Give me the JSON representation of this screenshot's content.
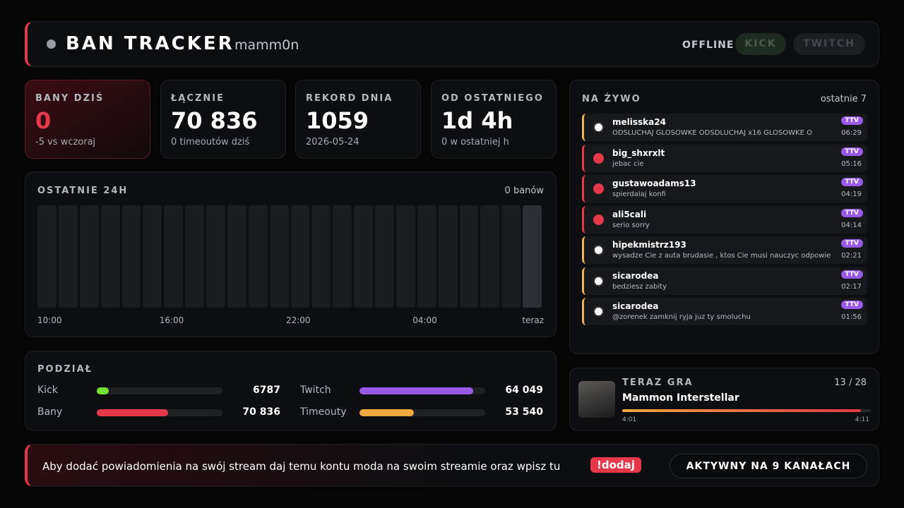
{
  "header": {
    "title": "BAN TRACKER",
    "channel": "mamm0n",
    "status": "OFFLINE",
    "buttons": [
      "KICK",
      "TWITCH"
    ]
  },
  "stats": [
    {
      "label": "BANY DZIŚ",
      "value": "0",
      "sub": "-5 vs wczoraj"
    },
    {
      "label": "ŁĄCZNIE",
      "value": "70 836",
      "sub": "0 timeoutów dziś"
    },
    {
      "label": "REKORD DNIA",
      "value": "1059",
      "sub": "2026-05-24"
    },
    {
      "label": "OD OSTATNIEGO",
      "value": "1d 4h",
      "sub": "0 w ostatniej h"
    }
  ],
  "chart_data": {
    "type": "bar",
    "title": "OSTATNIE 24H",
    "subtitle": "0 banów",
    "categories": [
      "10:00",
      null,
      null,
      null,
      null,
      null,
      "16:00",
      null,
      null,
      null,
      null,
      null,
      "22:00",
      null,
      null,
      null,
      null,
      null,
      "04:00",
      null,
      null,
      null,
      null,
      "teraz"
    ],
    "values": [
      0,
      0,
      0,
      0,
      0,
      0,
      0,
      0,
      0,
      0,
      0,
      0,
      0,
      0,
      0,
      0,
      0,
      0,
      0,
      0,
      0,
      0,
      0,
      0
    ],
    "color": "#e5384a"
  },
  "split": {
    "title": "PODZIAŁ",
    "rows": [
      [
        {
          "name": "Kick",
          "value": 6787,
          "color": "#74e033"
        },
        {
          "name": "Twitch",
          "value": {
            "value": 64049,
            "label": "64 049"
          },
          "color": "#9a5ae8"
        }
      ],
      [
        {
          "name": "Bany",
          "value": {
            "value": 70836,
            "label": "70 836"
          },
          "color": "#e5384a"
        },
        {
          "name": "Timeouty",
          "value": {
            "value": 53540,
            "label": "53 540"
          },
          "color": "#f0a83c"
        }
      ]
    ]
  },
  "live": {
    "title": "NA ŻYWO",
    "summary": "ostatnie 7",
    "items": [
      {
        "type": "timeout",
        "user": "melisska24",
        "message": "ODSLUCHAJ GLOSOWKE ODSDLUCHAJ x16 GLOSOWKE O",
        "badge": "TTV",
        "time": "06:29"
      },
      {
        "type": "ban",
        "user": "big_shxrxlt",
        "message": "jebac cie",
        "badge": "TTV",
        "time": "05:16"
      },
      {
        "type": "ban",
        "user": "gustawoadams13",
        "message": "spierdalaj konfi",
        "badge": "TTV",
        "time": "04:19"
      },
      {
        "type": "ban",
        "user": "ali5cali",
        "message": "serio sorry",
        "badge": "TTV",
        "time": "04:14"
      },
      {
        "type": "timeout",
        "user": "hipekmistrz193",
        "message": "wysadze Cie z auta brudasie , ktos Cie musi nauczyc odpowiedniej",
        "badge": "TTV",
        "time": "02:21"
      },
      {
        "type": "timeout",
        "user": "sicarodea",
        "message": "bedziesz zabity",
        "badge": "TTV",
        "time": "02:17"
      },
      {
        "type": "timeout",
        "user": "sicarodea",
        "message": "@zorenek zamknij ryja juz ty smoluchu",
        "badge": "TTV",
        "time": "01:56"
      }
    ]
  },
  "now_playing": {
    "title": "TERAZ GRA",
    "position": "13 / 28",
    "song": "Mammon Interstellar",
    "elapsed": {
      "value": 241,
      "label": "4:01"
    },
    "duration": {
      "value": 251,
      "label": "4:11"
    }
  },
  "footer": {
    "text": "Aby dodać powiadomienia na swój stream daj temu kontu moda na swoim streamie oraz wpisz tu",
    "command": "!dodaj",
    "active": "AKTYWNY NA 9 KANAŁACH"
  }
}
